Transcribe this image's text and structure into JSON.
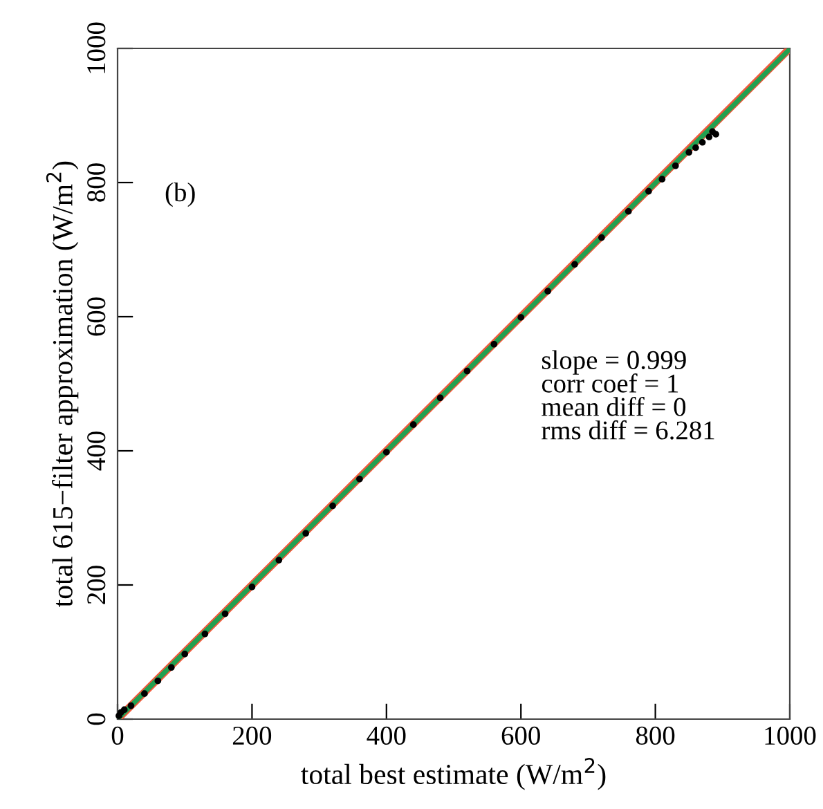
{
  "chart_data": {
    "type": "scatter",
    "xlabel": "total best estimate (W/m$^{2}$)",
    "ylabel": "total 615−filter approximation (W/m$^{2}$)",
    "xlim": [
      0,
      1000
    ],
    "ylim": [
      0,
      1000
    ],
    "xticks": [
      0,
      200,
      400,
      600,
      800,
      1000
    ],
    "yticks": [
      0,
      200,
      400,
      600,
      800,
      1000
    ],
    "grid": false,
    "annotations": [
      "(b)",
      "slope = 0.999\ncorr coef = 1\nmean diff = 0\nrms diff = 6.281"
    ],
    "series": [
      {
        "color": "#000000",
        "marker": "circle",
        "x": [
          2,
          5,
          10,
          20,
          40,
          60,
          80,
          100,
          130,
          160,
          200,
          240,
          280,
          320,
          360,
          400,
          440,
          480,
          520,
          560,
          600,
          640,
          680,
          720,
          760,
          790,
          810,
          830,
          850,
          860,
          870,
          880,
          885,
          890
        ],
        "values": [
          5,
          10,
          14,
          20,
          38,
          57,
          77,
          97,
          127,
          157,
          197,
          237,
          277,
          318,
          358,
          398,
          439,
          479,
          519,
          559,
          599,
          638,
          678,
          718,
          757,
          787,
          805,
          825,
          845,
          852,
          860,
          868,
          876,
          872
        ]
      },
      {
        "type": "line",
        "color": "#f05a3c",
        "x": [
          0,
          1000
        ],
        "values": [
          0,
          1000
        ]
      },
      {
        "type": "line",
        "color": "#22a050",
        "x": [
          0,
          1000
        ],
        "values": [
          0,
          999
        ]
      }
    ]
  }
}
